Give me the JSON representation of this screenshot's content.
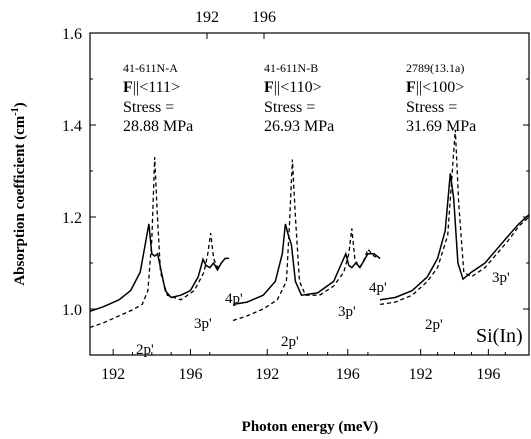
{
  "chart_data": {
    "type": "line",
    "xlabel": "Photon energy (meV)",
    "ylabel": "Absorption coefficient (cm",
    "ylabel_sup": "-1",
    "ylabel_close": ")",
    "ylim": [
      0.9,
      1.6
    ],
    "y_ticks": [
      "1.0",
      "1.2",
      "1.4",
      "1.6"
    ],
    "y_tick_values": [
      1.0,
      1.2,
      1.4,
      1.6
    ],
    "bottom_ticks": [
      "192",
      "196",
      "192",
      "196",
      "192",
      "196"
    ],
    "top_ticks": [
      "192",
      "196"
    ],
    "sample_label": "Si(In)",
    "panels": [
      {
        "xlim": [
          190.8,
          198.1
        ],
        "sample": "41-611N-A",
        "orient_F": "F",
        "orient_dir": "||<111>",
        "stress_line1": "Stress =",
        "stress_value": "28.88 MPa",
        "annotations": [
          "2p'",
          "3p'",
          "4p'"
        ],
        "series": [
          {
            "style": "solid",
            "points": [
              [
                190.8,
                0.995
              ],
              [
                191.5,
                1.005
              ],
              [
                192.3,
                1.02
              ],
              [
                192.9,
                1.04
              ],
              [
                193.4,
                1.08
              ],
              [
                193.7,
                1.15
              ],
              [
                193.85,
                1.185
              ],
              [
                194.0,
                1.12
              ],
              [
                194.15,
                1.115
              ],
              [
                194.3,
                1.12
              ],
              [
                194.45,
                1.09
              ],
              [
                194.7,
                1.04
              ],
              [
                195.0,
                1.025
              ],
              [
                195.5,
                1.03
              ],
              [
                196.0,
                1.04
              ],
              [
                196.4,
                1.07
              ],
              [
                196.65,
                1.108
              ],
              [
                196.8,
                1.095
              ],
              [
                197.0,
                1.09
              ],
              [
                197.2,
                1.1
              ],
              [
                197.4,
                1.085
              ],
              [
                197.6,
                1.1
              ],
              [
                197.8,
                1.11
              ],
              [
                198.0,
                1.11
              ]
            ]
          },
          {
            "style": "dashed",
            "points": [
              [
                190.8,
                0.96
              ],
              [
                191.5,
                0.97
              ],
              [
                192.3,
                0.985
              ],
              [
                193.0,
                0.998
              ],
              [
                193.5,
                1.01
              ],
              [
                193.8,
                1.04
              ],
              [
                194.0,
                1.15
              ],
              [
                194.15,
                1.33
              ],
              [
                194.28,
                1.21
              ],
              [
                194.45,
                1.08
              ],
              [
                194.8,
                1.03
              ],
              [
                195.5,
                1.02
              ],
              [
                196.2,
                1.04
              ],
              [
                196.7,
                1.08
              ],
              [
                196.9,
                1.12
              ],
              [
                197.05,
                1.165
              ],
              [
                197.2,
                1.11
              ],
              [
                197.4,
                1.09
              ],
              [
                197.6,
                1.1
              ],
              [
                197.8,
                1.11
              ],
              [
                198.0,
                1.11
              ]
            ]
          }
        ]
      },
      {
        "xlim": [
          190.3,
          197.6
        ],
        "sample": "41-611N-B",
        "orient_F": "F",
        "orient_dir": "||<110>",
        "stress_line1": "Stress =",
        "stress_value": "26.93 MPa",
        "annotations": [
          "2p'",
          "3p'",
          "4p'"
        ],
        "series": [
          {
            "style": "solid",
            "points": [
              [
                190.3,
                1.01
              ],
              [
                191.0,
                1.015
              ],
              [
                191.8,
                1.03
              ],
              [
                192.4,
                1.06
              ],
              [
                192.75,
                1.12
              ],
              [
                192.9,
                1.185
              ],
              [
                193.05,
                1.16
              ],
              [
                193.2,
                1.14
              ],
              [
                193.4,
                1.06
              ],
              [
                193.7,
                1.03
              ],
              [
                194.5,
                1.035
              ],
              [
                195.3,
                1.06
              ],
              [
                195.7,
                1.1
              ],
              [
                195.9,
                1.12
              ],
              [
                196.05,
                1.095
              ],
              [
                196.2,
                1.09
              ],
              [
                196.4,
                1.1
              ],
              [
                196.6,
                1.09
              ],
              [
                196.8,
                1.105
              ],
              [
                197.0,
                1.12
              ],
              [
                197.3,
                1.12
              ],
              [
                197.6,
                1.11
              ]
            ]
          },
          {
            "style": "dashed",
            "points": [
              [
                190.3,
                0.975
              ],
              [
                191.0,
                0.985
              ],
              [
                191.8,
                1.0
              ],
              [
                192.5,
                1.02
              ],
              [
                192.95,
                1.06
              ],
              [
                193.1,
                1.18
              ],
              [
                193.25,
                1.325
              ],
              [
                193.4,
                1.2
              ],
              [
                193.6,
                1.06
              ],
              [
                193.9,
                1.03
              ],
              [
                194.6,
                1.03
              ],
              [
                195.3,
                1.05
              ],
              [
                195.8,
                1.08
              ],
              [
                196.05,
                1.12
              ],
              [
                196.2,
                1.175
              ],
              [
                196.35,
                1.11
              ],
              [
                196.55,
                1.09
              ],
              [
                196.75,
                1.1
              ],
              [
                197.0,
                1.13
              ],
              [
                197.3,
                1.115
              ],
              [
                197.6,
                1.11
              ]
            ]
          }
        ]
      },
      {
        "xlim": [
          189.6,
          198.4
        ],
        "sample": "2789(13.1a)",
        "orient_F": "F",
        "orient_dir": "||<100>",
        "stress_line1": "Stress =",
        "stress_value": "31.69 MPa",
        "annotations": [
          "2p'",
          "3p'"
        ],
        "series": [
          {
            "style": "solid",
            "points": [
              [
                189.6,
                1.02
              ],
              [
                190.5,
                1.025
              ],
              [
                191.5,
                1.04
              ],
              [
                192.4,
                1.07
              ],
              [
                193.0,
                1.11
              ],
              [
                193.45,
                1.17
              ],
              [
                193.75,
                1.295
              ],
              [
                193.95,
                1.24
              ],
              [
                194.2,
                1.1
              ],
              [
                194.5,
                1.065
              ],
              [
                195.0,
                1.08
              ],
              [
                195.8,
                1.1
              ],
              [
                196.5,
                1.13
              ],
              [
                197.2,
                1.16
              ],
              [
                197.8,
                1.185
              ],
              [
                198.4,
                1.205
              ]
            ]
          },
          {
            "style": "dashed",
            "points": [
              [
                189.6,
                1.01
              ],
              [
                190.5,
                1.015
              ],
              [
                191.5,
                1.03
              ],
              [
                192.4,
                1.06
              ],
              [
                193.0,
                1.09
              ],
              [
                193.6,
                1.16
              ],
              [
                193.85,
                1.29
              ],
              [
                194.05,
                1.39
              ],
              [
                194.25,
                1.23
              ],
              [
                194.55,
                1.08
              ],
              [
                195.0,
                1.07
              ],
              [
                195.8,
                1.09
              ],
              [
                196.5,
                1.12
              ],
              [
                197.2,
                1.15
              ],
              [
                197.8,
                1.18
              ],
              [
                198.4,
                1.2
              ]
            ]
          }
        ]
      }
    ]
  }
}
